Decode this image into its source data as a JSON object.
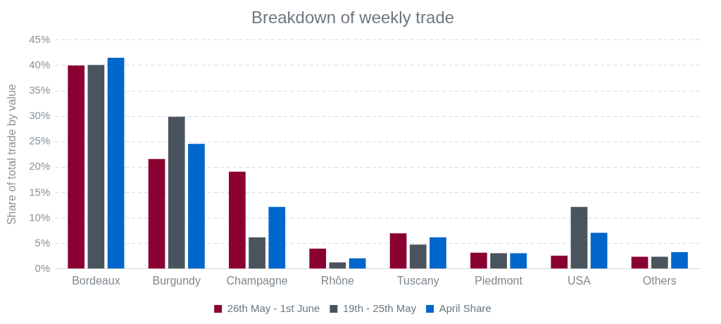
{
  "chart_data": {
    "type": "bar",
    "title": "Breakdown of weekly trade",
    "y_label": "Share of total trade by value",
    "categories": [
      "Bordeaux",
      "Burgundy",
      "Champagne",
      "Rhône",
      "Tuscany",
      "Piedmont",
      "USA",
      "Others"
    ],
    "series": [
      {
        "name": "26th May - 1st June",
        "color": "#8b0033",
        "values": [
          40,
          21.6,
          19.1,
          4,
          7,
          3.2,
          2.6,
          2.4
        ]
      },
      {
        "name": "19th - 25th May",
        "color": "#4a545e",
        "values": [
          40.1,
          29.9,
          6.2,
          1.3,
          4.8,
          3.1,
          12.2,
          2.4
        ]
      },
      {
        "name": "April Share",
        "color": "#0066cc",
        "values": [
          41.5,
          24.6,
          12.2,
          2.1,
          6.2,
          3.1,
          7.1,
          3.3
        ]
      }
    ],
    "ylim": [
      0,
      45
    ],
    "yticks": [
      {
        "value": 0,
        "label": "0%"
      },
      {
        "value": 5,
        "label": "5%"
      },
      {
        "value": 10,
        "label": "10%"
      },
      {
        "value": 15,
        "label": "15%"
      },
      {
        "value": 20,
        "label": "20%"
      },
      {
        "value": 25,
        "label": "25%"
      },
      {
        "value": 30,
        "label": "30%"
      },
      {
        "value": 35,
        "label": "35%"
      },
      {
        "value": 40,
        "label": "40%"
      },
      {
        "value": 45,
        "label": "45%"
      }
    ],
    "grid": true,
    "legend": "bottom"
  }
}
